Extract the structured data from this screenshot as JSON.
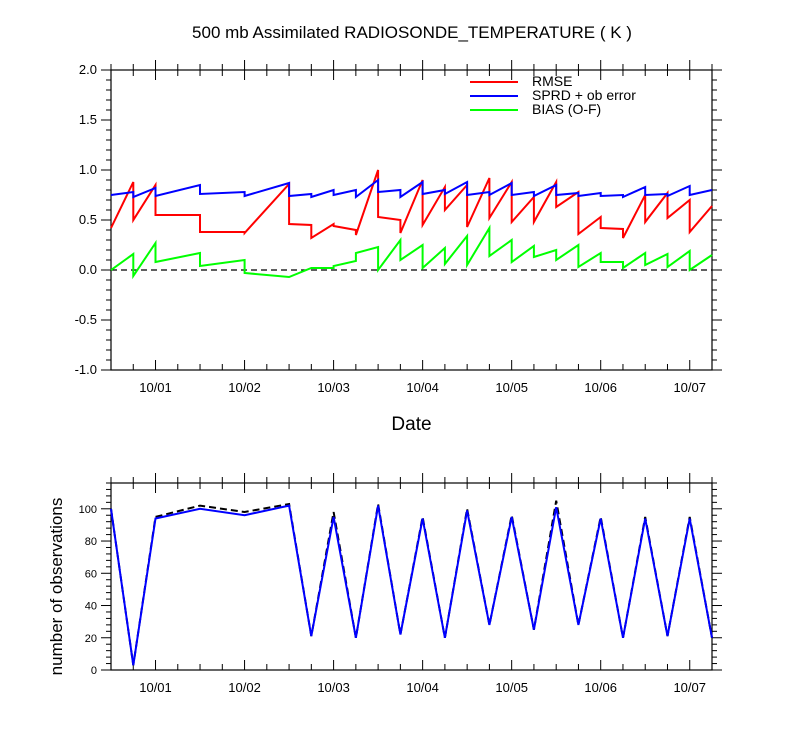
{
  "title": "500 mb Assimilated RADIOSONDE_TEMPERATURE ( K )",
  "chart_data": [
    {
      "type": "line",
      "title": "500 mb Assimilated RADIOSONDE_TEMPERATURE ( K )",
      "xlabel": "Date",
      "ylabel": "",
      "x_ticks": [
        "10/01",
        "10/02",
        "10/03",
        "10/04",
        "10/05",
        "10/06",
        "10/07"
      ],
      "x_tick_positions": [
        1,
        2,
        3,
        4,
        5,
        6,
        7
      ],
      "xlim": [
        0.5,
        7.25
      ],
      "ylim": [
        -1.0,
        2.0
      ],
      "y_ticks": [
        "-1.0",
        "-0.5",
        "0.0",
        "0.5",
        "1.0",
        "1.5",
        "2.0"
      ],
      "y_tick_values": [
        -1.0,
        -0.5,
        0.0,
        0.5,
        1.0,
        1.5,
        2.0
      ],
      "zero_line": true,
      "legend_position": "top-right",
      "series": [
        {
          "name": "RMSE",
          "color": "#ff0000",
          "points": [
            [
              0.5,
              0.42
            ],
            [
              0.75,
              0.88
            ],
            [
              0.75,
              0.5
            ],
            [
              1.0,
              0.85
            ],
            [
              1.0,
              0.55
            ],
            [
              1.5,
              0.55
            ],
            [
              1.5,
              0.38
            ],
            [
              2.0,
              0.38
            ],
            [
              2.0,
              0.37
            ],
            [
              2.5,
              0.86
            ],
            [
              2.5,
              0.46
            ],
            [
              2.75,
              0.45
            ],
            [
              2.75,
              0.32
            ],
            [
              3.0,
              0.46
            ],
            [
              3.0,
              0.44
            ],
            [
              3.25,
              0.4
            ],
            [
              3.25,
              0.35
            ],
            [
              3.5,
              1.0
            ],
            [
              3.5,
              0.53
            ],
            [
              3.75,
              0.5
            ],
            [
              3.75,
              0.37
            ],
            [
              4.0,
              0.9
            ],
            [
              4.0,
              0.45
            ],
            [
              4.25,
              0.83
            ],
            [
              4.25,
              0.6
            ],
            [
              4.5,
              0.85
            ],
            [
              4.5,
              0.43
            ],
            [
              4.75,
              0.92
            ],
            [
              4.75,
              0.52
            ],
            [
              5.0,
              0.88
            ],
            [
              5.0,
              0.48
            ],
            [
              5.25,
              0.73
            ],
            [
              5.25,
              0.48
            ],
            [
              5.5,
              0.88
            ],
            [
              5.5,
              0.63
            ],
            [
              5.75,
              0.78
            ],
            [
              5.75,
              0.36
            ],
            [
              6.0,
              0.53
            ],
            [
              6.0,
              0.42
            ],
            [
              6.25,
              0.41
            ],
            [
              6.25,
              0.32
            ],
            [
              6.5,
              0.75
            ],
            [
              6.5,
              0.48
            ],
            [
              6.75,
              0.77
            ],
            [
              6.75,
              0.52
            ],
            [
              7.0,
              0.7
            ],
            [
              7.0,
              0.38
            ],
            [
              7.25,
              0.64
            ]
          ]
        },
        {
          "name": "SPRD + ob error",
          "color": "#0000ff",
          "points": [
            [
              0.5,
              0.75
            ],
            [
              0.75,
              0.78
            ],
            [
              0.75,
              0.73
            ],
            [
              1.0,
              0.82
            ],
            [
              1.0,
              0.74
            ],
            [
              1.5,
              0.85
            ],
            [
              1.5,
              0.76
            ],
            [
              2.0,
              0.78
            ],
            [
              2.0,
              0.74
            ],
            [
              2.5,
              0.87
            ],
            [
              2.5,
              0.74
            ],
            [
              2.75,
              0.76
            ],
            [
              2.75,
              0.73
            ],
            [
              3.0,
              0.8
            ],
            [
              3.0,
              0.75
            ],
            [
              3.25,
              0.8
            ],
            [
              3.25,
              0.73
            ],
            [
              3.5,
              0.9
            ],
            [
              3.5,
              0.78
            ],
            [
              3.75,
              0.8
            ],
            [
              3.75,
              0.73
            ],
            [
              4.0,
              0.88
            ],
            [
              4.0,
              0.76
            ],
            [
              4.25,
              0.8
            ],
            [
              4.25,
              0.76
            ],
            [
              4.5,
              0.88
            ],
            [
              4.5,
              0.75
            ],
            [
              4.75,
              0.78
            ],
            [
              4.75,
              0.75
            ],
            [
              5.0,
              0.87
            ],
            [
              5.0,
              0.75
            ],
            [
              5.25,
              0.78
            ],
            [
              5.25,
              0.74
            ],
            [
              5.5,
              0.85
            ],
            [
              5.5,
              0.75
            ],
            [
              5.75,
              0.77
            ],
            [
              5.75,
              0.74
            ],
            [
              6.0,
              0.77
            ],
            [
              6.0,
              0.74
            ],
            [
              6.25,
              0.75
            ],
            [
              6.25,
              0.73
            ],
            [
              6.5,
              0.83
            ],
            [
              6.5,
              0.75
            ],
            [
              6.75,
              0.76
            ],
            [
              6.75,
              0.74
            ],
            [
              7.0,
              0.84
            ],
            [
              7.0,
              0.75
            ],
            [
              7.25,
              0.8
            ]
          ]
        },
        {
          "name": "BIAS (O-F)",
          "color": "#00ff00",
          "points": [
            [
              0.5,
              0.0
            ],
            [
              0.75,
              0.16
            ],
            [
              0.75,
              -0.06
            ],
            [
              1.0,
              0.27
            ],
            [
              1.0,
              0.08
            ],
            [
              1.5,
              0.17
            ],
            [
              1.5,
              0.04
            ],
            [
              2.0,
              0.1
            ],
            [
              2.0,
              -0.03
            ],
            [
              2.5,
              -0.07
            ],
            [
              2.75,
              0.02
            ],
            [
              3.0,
              0.02
            ],
            [
              3.0,
              0.04
            ],
            [
              3.25,
              0.09
            ],
            [
              3.25,
              0.17
            ],
            [
              3.5,
              0.23
            ],
            [
              3.5,
              0.0
            ],
            [
              3.75,
              0.3
            ],
            [
              3.75,
              0.1
            ],
            [
              4.0,
              0.25
            ],
            [
              4.0,
              0.02
            ],
            [
              4.25,
              0.22
            ],
            [
              4.25,
              0.06
            ],
            [
              4.5,
              0.34
            ],
            [
              4.5,
              0.05
            ],
            [
              4.75,
              0.42
            ],
            [
              4.75,
              0.14
            ],
            [
              5.0,
              0.3
            ],
            [
              5.0,
              0.08
            ],
            [
              5.25,
              0.24
            ],
            [
              5.25,
              0.13
            ],
            [
              5.5,
              0.2
            ],
            [
              5.5,
              0.1
            ],
            [
              5.75,
              0.25
            ],
            [
              5.75,
              0.03
            ],
            [
              6.0,
              0.17
            ],
            [
              6.0,
              0.08
            ],
            [
              6.25,
              0.08
            ],
            [
              6.25,
              0.02
            ],
            [
              6.5,
              0.17
            ],
            [
              6.5,
              0.05
            ],
            [
              6.75,
              0.16
            ],
            [
              6.75,
              0.03
            ],
            [
              7.0,
              0.19
            ],
            [
              7.0,
              0.0
            ],
            [
              7.25,
              0.15
            ]
          ]
        }
      ]
    },
    {
      "type": "line",
      "title": "",
      "xlabel": "",
      "ylabel": "number of observations",
      "x_ticks": [
        "10/01",
        "10/02",
        "10/03",
        "10/04",
        "10/05",
        "10/06",
        "10/07"
      ],
      "x_tick_positions": [
        1,
        2,
        3,
        4,
        5,
        6,
        7
      ],
      "xlim": [
        0.5,
        7.25
      ],
      "ylim": [
        0,
        116
      ],
      "y_ticks": [
        "0",
        "20",
        "40",
        "60",
        "80",
        "100"
      ],
      "y_tick_values": [
        0,
        20,
        40,
        60,
        80,
        100
      ],
      "series": [
        {
          "color": "#000000",
          "dashed": true,
          "points": [
            [
              0.5,
              100
            ],
            [
              0.75,
              3
            ],
            [
              1.0,
              95
            ],
            [
              1.5,
              102
            ],
            [
              2.0,
              98
            ],
            [
              2.5,
              103
            ],
            [
              2.75,
              21
            ],
            [
              3.0,
              98
            ],
            [
              3.25,
              20
            ],
            [
              3.5,
              103
            ],
            [
              3.75,
              22
            ],
            [
              4.0,
              95
            ],
            [
              4.25,
              20
            ],
            [
              4.5,
              100
            ],
            [
              4.75,
              28
            ],
            [
              5.0,
              96
            ],
            [
              5.25,
              25
            ],
            [
              5.5,
              105
            ],
            [
              5.75,
              28
            ],
            [
              6.0,
              95
            ],
            [
              6.25,
              20
            ],
            [
              6.5,
              95
            ],
            [
              6.75,
              21
            ],
            [
              7.0,
              95
            ],
            [
              7.25,
              20
            ]
          ]
        },
        {
          "color": "#0000ff",
          "dashed": false,
          "points": [
            [
              0.5,
              100
            ],
            [
              0.75,
              3
            ],
            [
              1.0,
              94
            ],
            [
              1.5,
              100
            ],
            [
              2.0,
              96
            ],
            [
              2.5,
              102
            ],
            [
              2.75,
              21
            ],
            [
              3.0,
              95
            ],
            [
              3.25,
              20
            ],
            [
              3.5,
              102
            ],
            [
              3.75,
              22
            ],
            [
              4.0,
              94
            ],
            [
              4.25,
              20
            ],
            [
              4.5,
              99
            ],
            [
              4.75,
              28
            ],
            [
              5.0,
              95
            ],
            [
              5.25,
              25
            ],
            [
              5.5,
              101
            ],
            [
              5.75,
              28
            ],
            [
              6.0,
              94
            ],
            [
              6.25,
              20
            ],
            [
              6.5,
              94
            ],
            [
              6.75,
              21
            ],
            [
              7.0,
              94
            ],
            [
              7.25,
              20
            ]
          ]
        }
      ]
    }
  ]
}
